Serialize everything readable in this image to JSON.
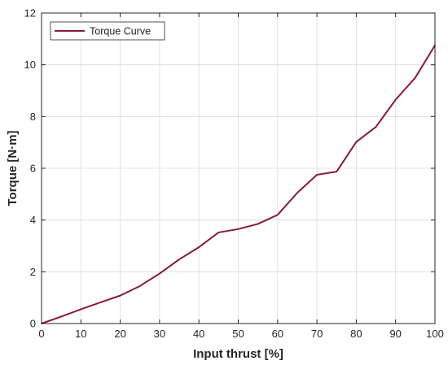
{
  "chart_data": {
    "type": "line",
    "xlabel": "Input thrust [%]",
    "ylabel": "Torque [N·m]",
    "xlim": [
      0,
      100
    ],
    "ylim": [
      0,
      12
    ],
    "xticks": [
      0,
      10,
      20,
      30,
      40,
      50,
      60,
      70,
      80,
      90,
      100
    ],
    "yticks": [
      0,
      2,
      4,
      6,
      8,
      10,
      12
    ],
    "grid": true,
    "legend_position": "top-left",
    "series": [
      {
        "name": "Torque Curve",
        "color": "#8b1a35",
        "x": [
          0,
          5,
          10,
          15,
          20,
          25,
          30,
          35,
          40,
          45,
          50,
          55,
          60,
          65,
          70,
          75,
          80,
          85,
          90,
          95,
          100
        ],
        "y": [
          0,
          0.27,
          0.55,
          0.82,
          1.08,
          1.45,
          1.93,
          2.48,
          2.95,
          3.52,
          3.65,
          3.85,
          4.2,
          5.05,
          5.75,
          5.87,
          7.02,
          7.6,
          8.65,
          9.5,
          10.75
        ]
      }
    ]
  }
}
